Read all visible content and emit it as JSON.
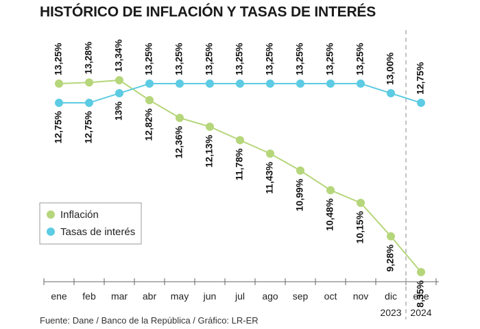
{
  "title": "HISTÓRICO DE INFLACIÓN Y TASAS DE INTERÉS",
  "source": "Fuente: Dane / Banco de la República / Gráfico: LR-ER",
  "chart_data": {
    "type": "line",
    "categories": [
      "ene",
      "feb",
      "mar",
      "abr",
      "may",
      "jun",
      "jul",
      "ago",
      "sep",
      "oct",
      "nov",
      "dic",
      "ene"
    ],
    "year_labels": [
      {
        "label": "2023",
        "under_category": 11
      },
      {
        "label": "2024",
        "under_category": 12
      }
    ],
    "ylim": [
      8,
      13.5
    ],
    "grid": false,
    "legend_position": "middle-left",
    "series": [
      {
        "name": "Inflación",
        "color": "#b5d67a",
        "values": [
          13.25,
          13.28,
          13.34,
          12.82,
          12.36,
          12.13,
          11.78,
          11.43,
          10.99,
          10.48,
          10.15,
          9.28,
          8.35
        ],
        "labels": [
          "13,25%",
          "13,28%",
          "13,34%",
          "12,82%",
          "12,36%",
          "12,13%",
          "11,78%",
          "11,43%",
          "10,99%",
          "10,48%",
          "10,15%",
          "9,28%",
          "8,35%"
        ]
      },
      {
        "name": "Tasas de interés",
        "color": "#5ccbe3",
        "values": [
          12.75,
          12.75,
          13.0,
          13.25,
          13.25,
          13.25,
          13.25,
          13.25,
          13.25,
          13.25,
          13.25,
          13.0,
          12.75
        ],
        "labels": [
          "12,75%",
          "12,75%",
          "13%",
          "13,25%",
          "13,25%",
          "13,25%",
          "13,25%",
          "13,25%",
          "13,25%",
          "13,25%",
          "13,25%",
          "13,00%",
          "12,75%"
        ]
      }
    ]
  }
}
